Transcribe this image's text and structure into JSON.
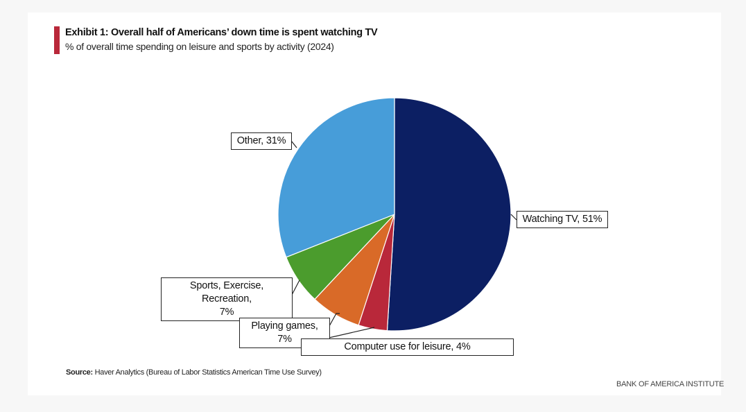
{
  "chart_data": {
    "type": "pie",
    "title": "Exhibit 1: Overall half of Americans’ down time is spent watching TV",
    "subtitle": "% of overall time spending on leisure and sports by activity (2024)",
    "slices": [
      {
        "label": "Watching TV",
        "value": 51,
        "color": "#0c1f63",
        "text": "Watching TV, 51%"
      },
      {
        "label": "Computer use for leisure",
        "value": 4,
        "color": "#b9283a",
        "text": "Computer use for leisure, 4%"
      },
      {
        "label": "Playing games",
        "value": 7,
        "color": "#d96a28",
        "text": "Playing games, 7%"
      },
      {
        "label": "Sports, Exercise, Recreation",
        "value": 7,
        "color": "#4b9c2d",
        "text_line1": "Sports, Exercise, Recreation,",
        "text_line2": "7%"
      },
      {
        "label": "Other",
        "value": 31,
        "color": "#479dd9",
        "text": "Other, 31%"
      }
    ]
  },
  "footer": {
    "source_label": "Source:",
    "source_text": " Haver Analytics (Bureau of Labor Statistics American Time Use Survey)",
    "brand": "BANK OF AMERICA INSTITUTE"
  }
}
